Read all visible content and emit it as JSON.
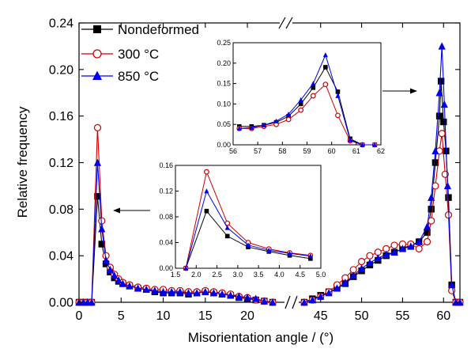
{
  "chart_data": {
    "type": "line",
    "xlabel": "Misorientation angle / (°)",
    "ylabel": "Relative frequency",
    "x_axis_break": true,
    "x_left_range": [
      0,
      23
    ],
    "x_right_range": [
      43,
      62
    ],
    "x_ticks": [
      "0",
      "5",
      "10",
      "15",
      "20",
      "45",
      "50",
      "55",
      "60"
    ],
    "ylim": [
      0,
      0.24
    ],
    "y_ticks": [
      "0.00",
      "0.04",
      "0.08",
      "0.12",
      "0.16",
      "0.20",
      "0.24"
    ],
    "legend_position": "top-left",
    "series": [
      {
        "name": "Nondeformed",
        "color": "#000000",
        "marker": "filled-square",
        "points": [
          [
            0,
            0
          ],
          [
            0.5,
            0
          ],
          [
            1,
            0
          ],
          [
            1.5,
            0
          ],
          [
            2.2,
            0.091
          ],
          [
            2.7,
            0.05
          ],
          [
            3.2,
            0.033
          ],
          [
            3.7,
            0.026
          ],
          [
            4.2,
            0.021
          ],
          [
            4.7,
            0.018
          ],
          [
            5.2,
            0.016
          ],
          [
            6,
            0.014
          ],
          [
            7,
            0.012
          ],
          [
            8,
            0.011
          ],
          [
            9,
            0.009
          ],
          [
            10,
            0.008
          ],
          [
            11,
            0.008
          ],
          [
            12,
            0.008
          ],
          [
            13,
            0.007
          ],
          [
            14,
            0.008
          ],
          [
            15,
            0.009
          ],
          [
            16,
            0.008
          ],
          [
            17,
            0.007
          ],
          [
            18,
            0.006
          ],
          [
            19,
            0.004
          ],
          [
            20,
            0.003
          ],
          [
            21,
            0.002
          ],
          [
            22,
            0.001
          ],
          [
            23,
            0
          ],
          [
            43,
            0
          ],
          [
            44,
            0.003
          ],
          [
            45,
            0.006
          ],
          [
            46,
            0.009
          ],
          [
            47,
            0.012
          ],
          [
            48,
            0.016
          ],
          [
            49,
            0.022
          ],
          [
            50,
            0.027
          ],
          [
            51,
            0.032
          ],
          [
            52,
            0.036
          ],
          [
            53,
            0.04
          ],
          [
            54,
            0.043
          ],
          [
            55,
            0.046
          ],
          [
            56,
            0.049
          ],
          [
            57,
            0.052
          ],
          [
            58,
            0.06
          ],
          [
            58.5,
            0.08
          ],
          [
            59,
            0.12
          ],
          [
            59.5,
            0.16
          ],
          [
            59.7,
            0.19
          ],
          [
            60,
            0.155
          ],
          [
            60.3,
            0.13
          ],
          [
            60.6,
            0.09
          ],
          [
            61,
            0.015
          ],
          [
            61.5,
            0
          ],
          [
            62,
            0
          ]
        ]
      },
      {
        "name": "300 °C",
        "color": "#cc0000",
        "marker": "open-circle",
        "points": [
          [
            0,
            0
          ],
          [
            0.5,
            0
          ],
          [
            1,
            0
          ],
          [
            1.5,
            0
          ],
          [
            2.2,
            0.15
          ],
          [
            2.7,
            0.07
          ],
          [
            3.2,
            0.04
          ],
          [
            3.7,
            0.03
          ],
          [
            4.2,
            0.024
          ],
          [
            4.7,
            0.02
          ],
          [
            5.2,
            0.017
          ],
          [
            6,
            0.015
          ],
          [
            7,
            0.013
          ],
          [
            8,
            0.012
          ],
          [
            9,
            0.011
          ],
          [
            10,
            0.011
          ],
          [
            11,
            0.01
          ],
          [
            12,
            0.01
          ],
          [
            13,
            0.009
          ],
          [
            14,
            0.009
          ],
          [
            15,
            0.01
          ],
          [
            16,
            0.009
          ],
          [
            17,
            0.008
          ],
          [
            18,
            0.007
          ],
          [
            19,
            0.005
          ],
          [
            20,
            0.004
          ],
          [
            21,
            0.002
          ],
          [
            22,
            0.001
          ],
          [
            23,
            0
          ],
          [
            43,
            0
          ],
          [
            44,
            0.002
          ],
          [
            45,
            0.005
          ],
          [
            46,
            0.009
          ],
          [
            47,
            0.015
          ],
          [
            48,
            0.021
          ],
          [
            49,
            0.028
          ],
          [
            50,
            0.035
          ],
          [
            51,
            0.04
          ],
          [
            52,
            0.043
          ],
          [
            53,
            0.046
          ],
          [
            54,
            0.049
          ],
          [
            55,
            0.05
          ],
          [
            56,
            0.05
          ],
          [
            57,
            0.046
          ],
          [
            58,
            0.052
          ],
          [
            58.5,
            0.07
          ],
          [
            59,
            0.1
          ],
          [
            59.5,
            0.13
          ],
          [
            59.8,
            0.145
          ],
          [
            60.2,
            0.11
          ],
          [
            60.6,
            0.075
          ],
          [
            61,
            0.01
          ],
          [
            61.5,
            0
          ],
          [
            62,
            0
          ]
        ]
      },
      {
        "name": "850 °C",
        "color": "#0000ee",
        "marker": "filled-triangle",
        "points": [
          [
            0,
            0
          ],
          [
            0.5,
            0
          ],
          [
            1,
            0
          ],
          [
            1.5,
            0
          ],
          [
            2.2,
            0.12
          ],
          [
            2.7,
            0.063
          ],
          [
            3.2,
            0.036
          ],
          [
            3.7,
            0.028
          ],
          [
            4.2,
            0.023
          ],
          [
            4.7,
            0.019
          ],
          [
            5.2,
            0.016
          ],
          [
            6,
            0.014
          ],
          [
            7,
            0.012
          ],
          [
            8,
            0.011
          ],
          [
            9,
            0.01
          ],
          [
            10,
            0.009
          ],
          [
            11,
            0.009
          ],
          [
            12,
            0.009
          ],
          [
            13,
            0.008
          ],
          [
            14,
            0.008
          ],
          [
            15,
            0.009
          ],
          [
            16,
            0.008
          ],
          [
            17,
            0.007
          ],
          [
            18,
            0.006
          ],
          [
            19,
            0.005
          ],
          [
            20,
            0.004
          ],
          [
            21,
            0.003
          ],
          [
            22,
            0.001
          ],
          [
            23,
            0
          ],
          [
            43,
            0
          ],
          [
            44,
            0.002
          ],
          [
            45,
            0.005
          ],
          [
            46,
            0.008
          ],
          [
            47,
            0.012
          ],
          [
            48,
            0.017
          ],
          [
            49,
            0.023
          ],
          [
            50,
            0.029
          ],
          [
            51,
            0.034
          ],
          [
            52,
            0.038
          ],
          [
            53,
            0.041
          ],
          [
            54,
            0.043
          ],
          [
            55,
            0.046
          ],
          [
            56,
            0.048
          ],
          [
            57,
            0.052
          ],
          [
            58,
            0.065
          ],
          [
            58.5,
            0.09
          ],
          [
            59,
            0.13
          ],
          [
            59.5,
            0.18
          ],
          [
            59.8,
            0.22
          ],
          [
            60.1,
            0.17
          ],
          [
            60.5,
            0.1
          ],
          [
            61,
            0.015
          ],
          [
            61.5,
            0
          ],
          [
            62,
            0
          ]
        ]
      }
    ],
    "insets": [
      {
        "xlim": [
          1.5,
          5
        ],
        "ylim": [
          0,
          0.16
        ],
        "x_ticks": [
          "1.5",
          "2.0",
          "2.5",
          "3.0",
          "3.5",
          "4.0",
          "4.5",
          "5.0"
        ],
        "y_ticks": [
          "0.00",
          "0.04",
          "0.08",
          "0.12",
          "0.16"
        ],
        "series": [
          {
            "color": "#000000",
            "marker": "filled-square",
            "points": [
              [
                1.75,
                0
              ],
              [
                2.25,
                0.089
              ],
              [
                2.75,
                0.05
              ],
              [
                3.25,
                0.033
              ],
              [
                3.75,
                0.026
              ],
              [
                4.25,
                0.02
              ],
              [
                4.75,
                0.015
              ]
            ]
          },
          {
            "color": "#cc0000",
            "marker": "open-circle",
            "points": [
              [
                1.75,
                0
              ],
              [
                2.25,
                0.15
              ],
              [
                2.75,
                0.07
              ],
              [
                3.25,
                0.04
              ],
              [
                3.75,
                0.03
              ],
              [
                4.25,
                0.024
              ],
              [
                4.75,
                0.02
              ]
            ]
          },
          {
            "color": "#0000ee",
            "marker": "filled-triangle",
            "points": [
              [
                1.75,
                0
              ],
              [
                2.25,
                0.12
              ],
              [
                2.75,
                0.063
              ],
              [
                3.25,
                0.036
              ],
              [
                3.75,
                0.028
              ],
              [
                4.25,
                0.023
              ],
              [
                4.75,
                0.019
              ]
            ]
          }
        ]
      },
      {
        "xlim": [
          56,
          62
        ],
        "ylim": [
          0,
          0.25
        ],
        "x_ticks": [
          "56",
          "57",
          "58",
          "59",
          "60",
          "61",
          "62"
        ],
        "y_ticks": [
          "0.00",
          "0.05",
          "0.10",
          "0.15",
          "0.20",
          "0.25"
        ],
        "series": [
          {
            "color": "#000000",
            "marker": "filled-square",
            "points": [
              [
                56.25,
                0.045
              ],
              [
                56.75,
                0.045
              ],
              [
                57.25,
                0.048
              ],
              [
                57.75,
                0.055
              ],
              [
                58.25,
                0.07
              ],
              [
                58.75,
                0.1
              ],
              [
                59.25,
                0.14
              ],
              [
                59.75,
                0.19
              ],
              [
                60.25,
                0.13
              ],
              [
                60.75,
                0.015
              ],
              [
                61.25,
                0
              ],
              [
                61.75,
                0
              ]
            ]
          },
          {
            "color": "#cc0000",
            "marker": "open-circle",
            "points": [
              [
                56.25,
                0.04
              ],
              [
                56.75,
                0.04
              ],
              [
                57.25,
                0.045
              ],
              [
                57.75,
                0.05
              ],
              [
                58.25,
                0.062
              ],
              [
                58.75,
                0.085
              ],
              [
                59.25,
                0.12
              ],
              [
                59.75,
                0.148
              ],
              [
                60.25,
                0.072
              ],
              [
                60.75,
                0.01
              ],
              [
                61.25,
                0
              ],
              [
                61.75,
                0
              ]
            ]
          },
          {
            "color": "#0000ee",
            "marker": "filled-triangle",
            "points": [
              [
                56.25,
                0.04
              ],
              [
                56.75,
                0.042
              ],
              [
                57.25,
                0.048
              ],
              [
                57.75,
                0.058
              ],
              [
                58.25,
                0.075
              ],
              [
                58.75,
                0.11
              ],
              [
                59.25,
                0.15
              ],
              [
                59.75,
                0.22
              ],
              [
                60.25,
                0.12
              ],
              [
                60.75,
                0.012
              ],
              [
                61.25,
                0
              ],
              [
                61.75,
                0
              ]
            ]
          }
        ]
      }
    ]
  }
}
